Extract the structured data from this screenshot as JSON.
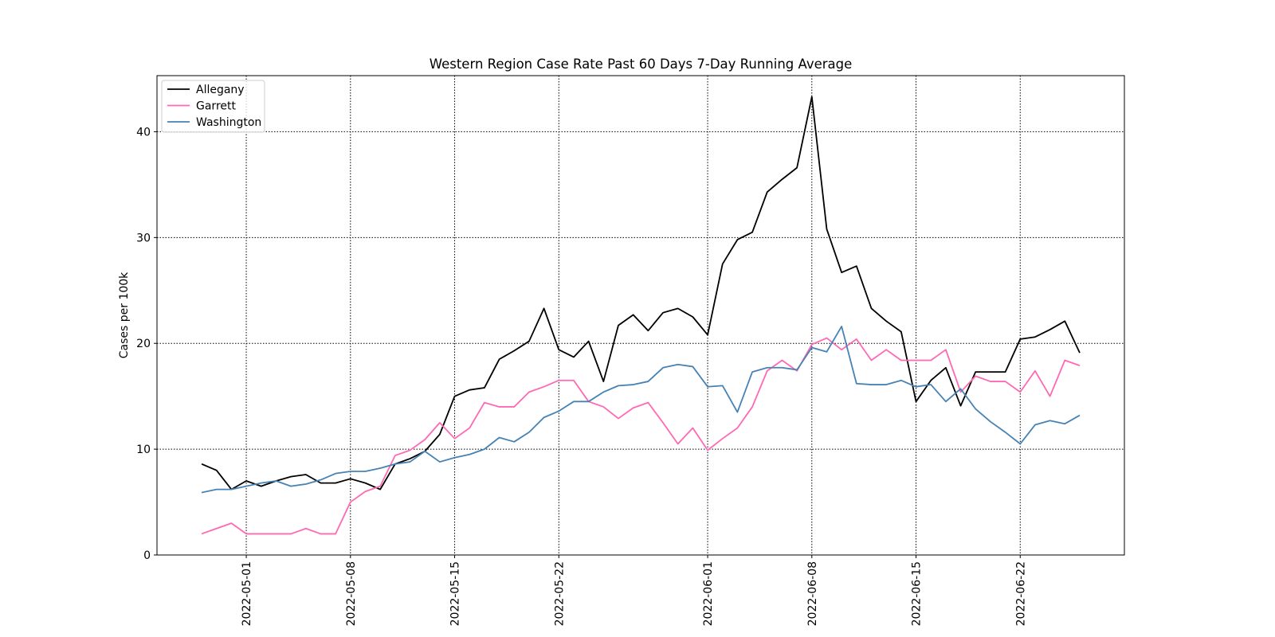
{
  "chart_data": {
    "type": "line",
    "title": "Western Region Case Rate  Past 60 Days 7-Day Running Average",
    "ylabel": "Cases per 100k",
    "x": [
      "2022-04-28",
      "2022-04-29",
      "2022-04-30",
      "2022-05-01",
      "2022-05-02",
      "2022-05-03",
      "2022-05-04",
      "2022-05-05",
      "2022-05-06",
      "2022-05-07",
      "2022-05-08",
      "2022-05-09",
      "2022-05-10",
      "2022-05-11",
      "2022-05-12",
      "2022-05-13",
      "2022-05-14",
      "2022-05-15",
      "2022-05-16",
      "2022-05-17",
      "2022-05-18",
      "2022-05-19",
      "2022-05-20",
      "2022-05-21",
      "2022-05-22",
      "2022-05-23",
      "2022-05-24",
      "2022-05-25",
      "2022-05-26",
      "2022-05-27",
      "2022-05-28",
      "2022-05-29",
      "2022-05-30",
      "2022-05-31",
      "2022-06-01",
      "2022-06-02",
      "2022-06-03",
      "2022-06-04",
      "2022-06-05",
      "2022-06-06",
      "2022-06-07",
      "2022-06-08",
      "2022-06-09",
      "2022-06-10",
      "2022-06-11",
      "2022-06-12",
      "2022-06-13",
      "2022-06-14",
      "2022-06-15",
      "2022-06-16",
      "2022-06-17",
      "2022-06-18",
      "2022-06-19",
      "2022-06-20",
      "2022-06-21",
      "2022-06-22",
      "2022-06-23",
      "2022-06-24",
      "2022-06-25",
      "2022-06-26"
    ],
    "series": [
      {
        "name": "Allegany",
        "color": "#000000",
        "values": [
          8.6,
          8.0,
          6.2,
          7.0,
          6.5,
          7.0,
          7.4,
          7.6,
          6.8,
          6.8,
          7.2,
          6.8,
          6.2,
          8.6,
          9.1,
          9.8,
          11.4,
          15.0,
          15.6,
          15.8,
          18.5,
          19.3,
          20.2,
          23.3,
          19.4,
          18.7,
          20.2,
          16.4,
          21.7,
          22.7,
          21.2,
          22.9,
          23.3,
          22.5,
          20.8,
          27.5,
          29.8,
          30.5,
          34.3,
          35.5,
          36.6,
          43.3,
          30.8,
          26.7,
          27.3,
          23.3,
          22.1,
          21.1,
          14.5,
          16.5,
          17.7,
          14.1,
          17.3,
          17.3,
          17.3,
          20.4,
          20.6,
          21.3,
          22.1,
          19.1
        ]
      },
      {
        "name": "Garrett",
        "color": "#ff69b4",
        "values": [
          2.0,
          2.5,
          3.0,
          2.0,
          2.0,
          2.0,
          2.0,
          2.5,
          2.0,
          2.0,
          5.0,
          6.0,
          6.5,
          9.4,
          9.9,
          10.9,
          12.5,
          11.0,
          12.0,
          14.4,
          14.0,
          14.0,
          15.4,
          15.9,
          16.5,
          16.5,
          14.5,
          14.0,
          12.9,
          13.9,
          14.4,
          12.5,
          10.5,
          12.0,
          9.9,
          11.0,
          12.0,
          14.0,
          17.4,
          18.4,
          17.4,
          19.9,
          20.5,
          19.4,
          20.4,
          18.4,
          19.4,
          18.4,
          18.4,
          18.4,
          19.4,
          15.4,
          16.9,
          16.4,
          16.4,
          15.4,
          17.4,
          15.0,
          18.4,
          17.9
        ]
      },
      {
        "name": "Washington",
        "color": "#4682b4",
        "values": [
          5.9,
          6.2,
          6.2,
          6.5,
          6.8,
          7.0,
          6.5,
          6.7,
          7.1,
          7.7,
          7.9,
          7.9,
          8.2,
          8.6,
          8.8,
          9.8,
          8.8,
          9.2,
          9.5,
          10.0,
          11.1,
          10.7,
          11.6,
          13.0,
          13.6,
          14.5,
          14.5,
          15.4,
          16.0,
          16.1,
          16.4,
          17.7,
          18.0,
          17.8,
          15.9,
          16.0,
          13.5,
          17.3,
          17.7,
          17.7,
          17.5,
          19.6,
          19.2,
          21.6,
          16.2,
          16.1,
          16.1,
          16.5,
          15.9,
          16.1,
          14.5,
          15.7,
          13.8,
          12.6,
          11.6,
          10.5,
          12.3,
          12.7,
          12.4,
          13.2
        ]
      }
    ],
    "xlim": [
      "2022-04-25",
      "2022-06-29"
    ],
    "xticks": [
      "2022-05-01",
      "2022-05-08",
      "2022-05-15",
      "2022-05-22",
      "2022-06-01",
      "2022-06-08",
      "2022-06-15",
      "2022-06-22"
    ],
    "ylim": [
      0,
      45.3
    ],
    "yticks": [
      0,
      10,
      20,
      30,
      40
    ],
    "grid": true,
    "legend": "upper left"
  }
}
